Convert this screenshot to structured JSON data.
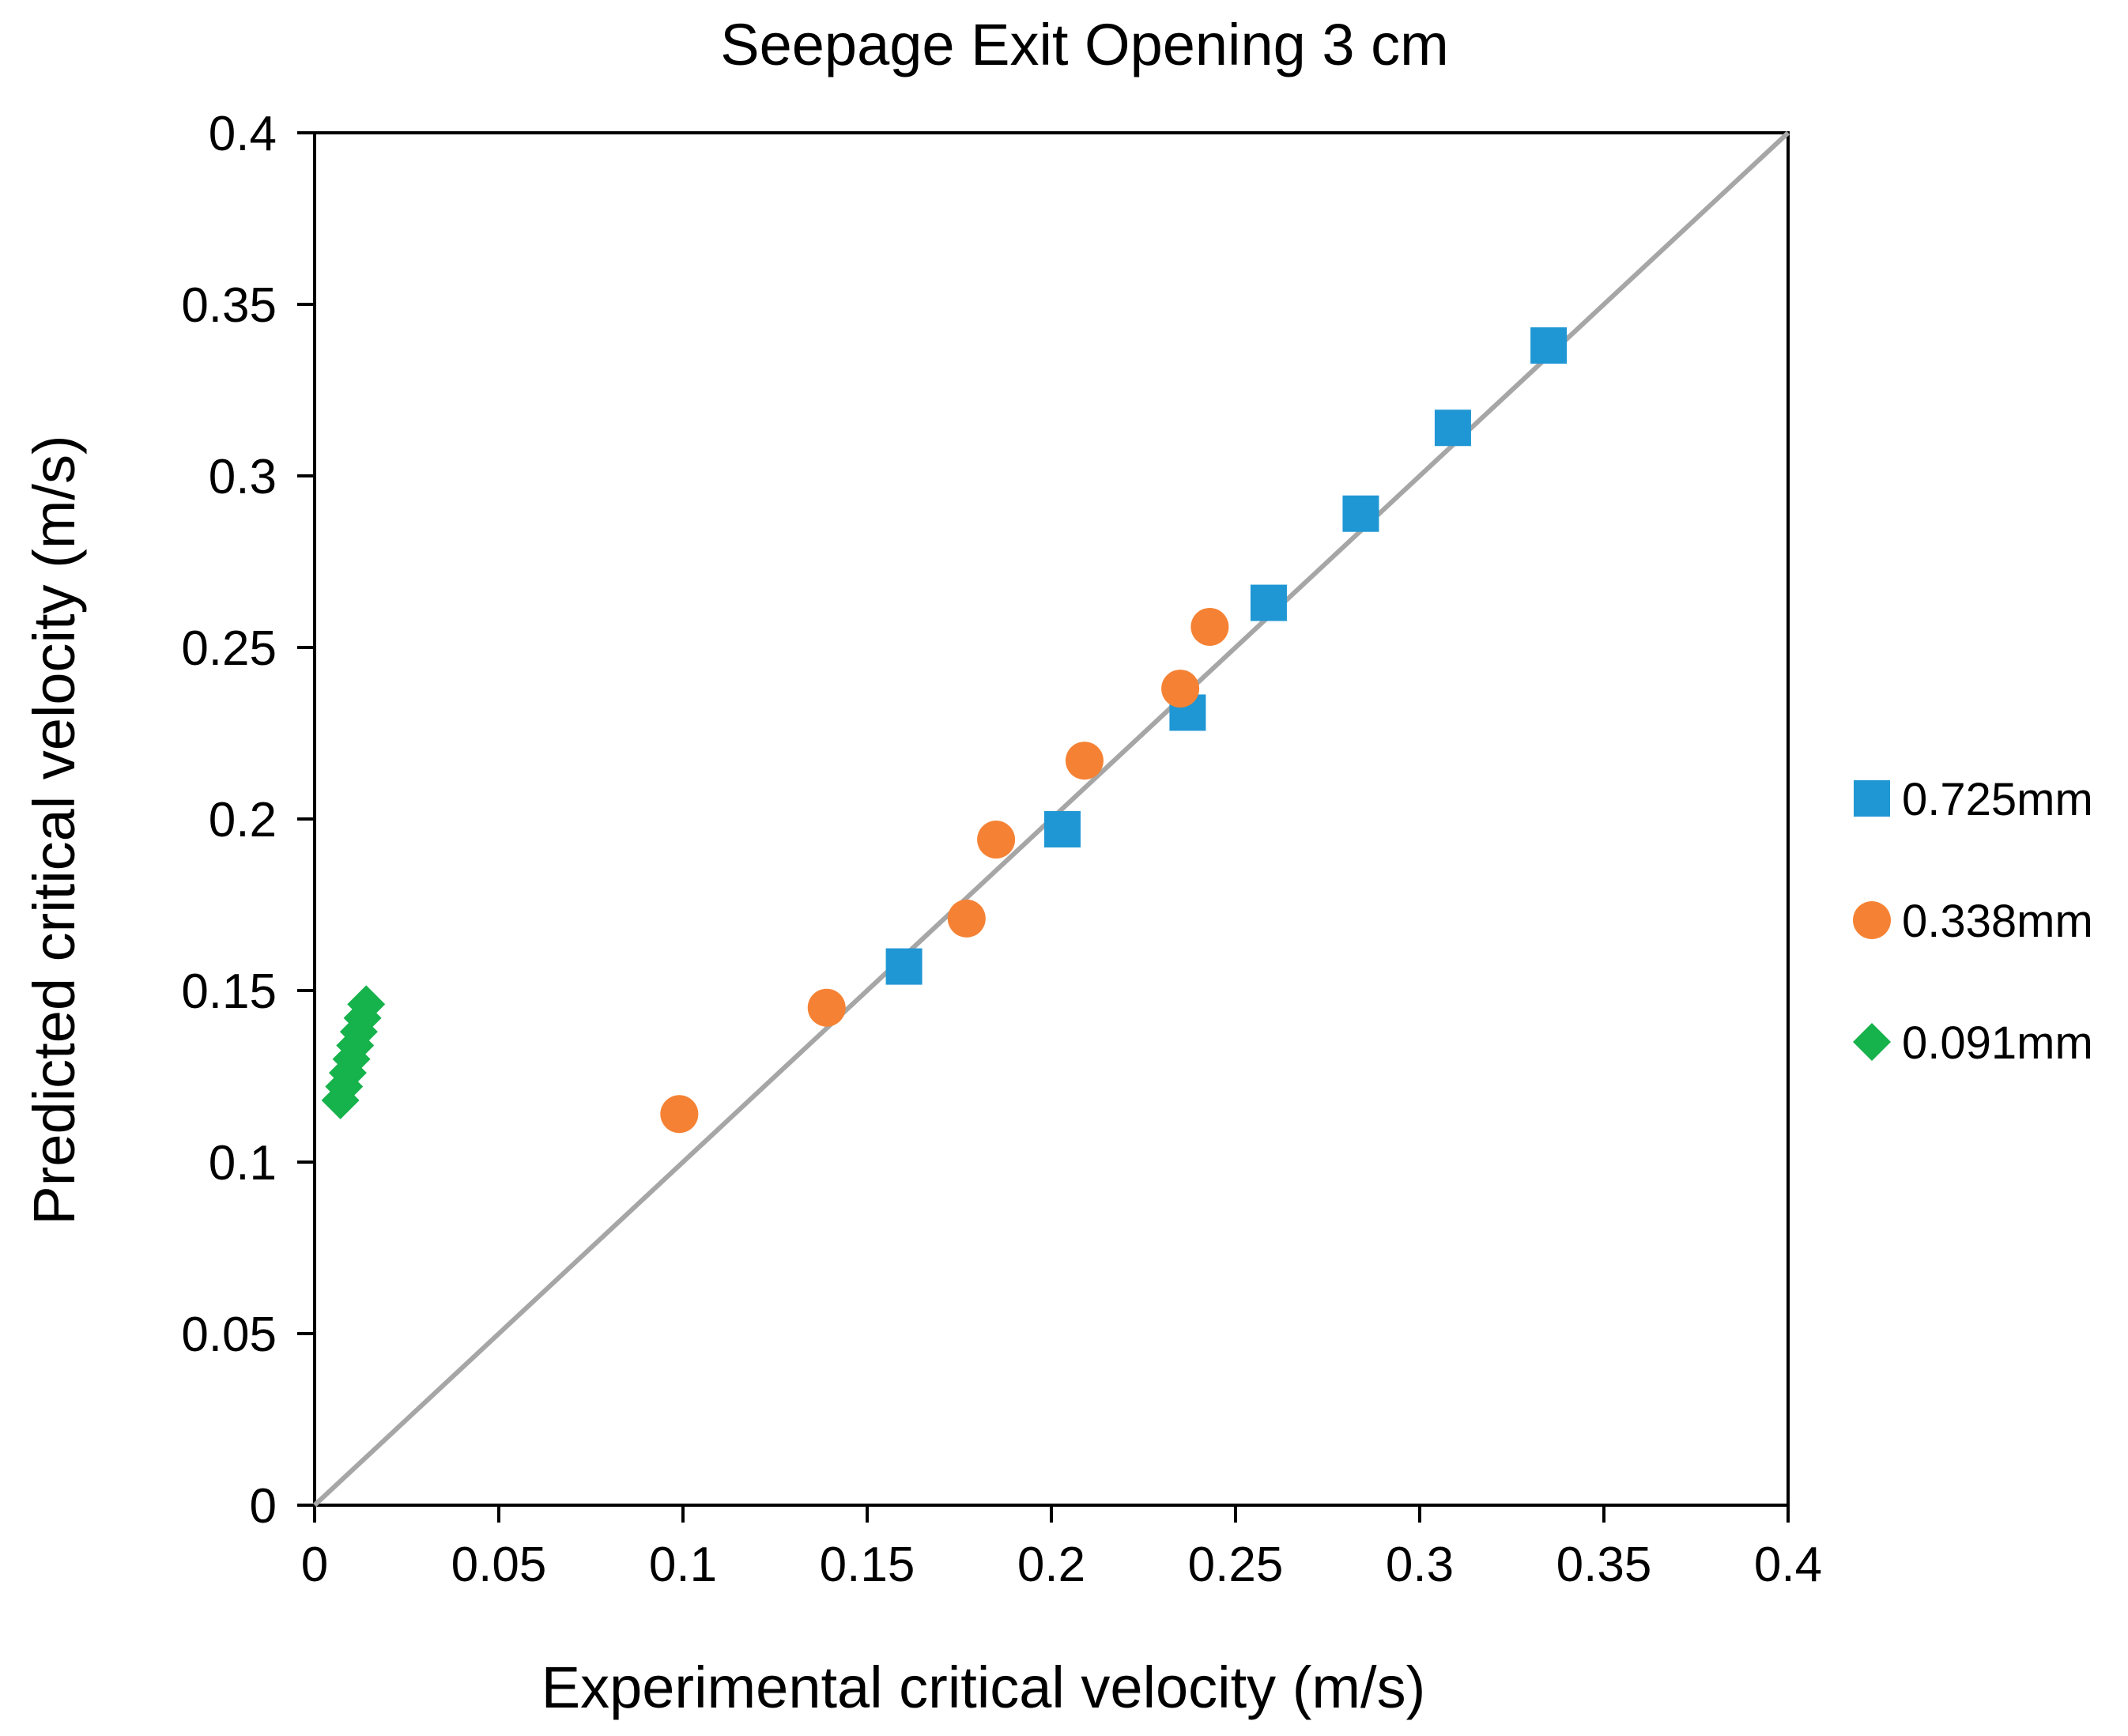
{
  "chart_data": {
    "type": "scatter",
    "title": "Seepage Exit Opening 3 cm",
    "xlabel": "Experimental critical velocity (m/s)",
    "ylabel": "Predicted critical velocity (m/s)",
    "xlim": [
      0,
      0.4
    ],
    "ylim": [
      0,
      0.4
    ],
    "xticks": [
      "0",
      "0.05",
      "0.1",
      "0.15",
      "0.2",
      "0.25",
      "0.3",
      "0.35",
      "0.4"
    ],
    "yticks": [
      "0",
      "0.05",
      "0.1",
      "0.15",
      "0.2",
      "0.25",
      "0.3",
      "0.35",
      "0.4"
    ],
    "grid": false,
    "legend_position": "right",
    "reference_line": {
      "name": "1:1 line",
      "x": [
        0,
        0.4
      ],
      "y": [
        0,
        0.4
      ],
      "color": "#a6a6a6"
    },
    "series": [
      {
        "name": "0.725mm",
        "marker": "square",
        "color": "#1f97d4",
        "x": [
          0.16,
          0.203,
          0.237,
          0.259,
          0.284,
          0.309,
          0.335
        ],
        "y": [
          0.157,
          0.197,
          0.231,
          0.263,
          0.289,
          0.314,
          0.338
        ]
      },
      {
        "name": "0.338mm",
        "marker": "circle",
        "color": "#f58234",
        "x": [
          0.099,
          0.139,
          0.177,
          0.185,
          0.209,
          0.235,
          0.243
        ],
        "y": [
          0.114,
          0.145,
          0.171,
          0.194,
          0.217,
          0.238,
          0.256
        ]
      },
      {
        "name": "0.091mm",
        "marker": "diamond",
        "color": "#16b24b",
        "x": [
          0.007,
          0.008,
          0.009,
          0.01,
          0.011,
          0.012,
          0.013,
          0.014
        ],
        "y": [
          0.118,
          0.122,
          0.126,
          0.13,
          0.134,
          0.138,
          0.142,
          0.146
        ]
      }
    ]
  }
}
